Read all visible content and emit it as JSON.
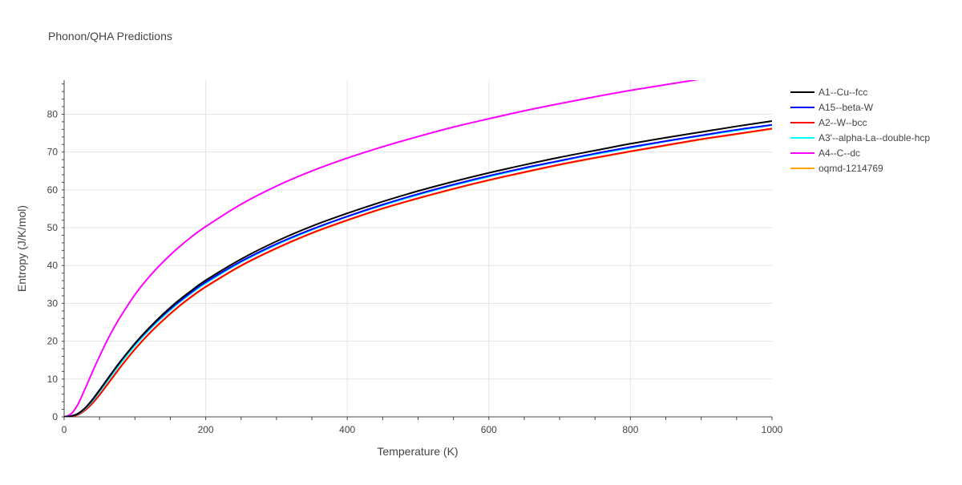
{
  "chart_data": {
    "type": "line",
    "title": "Phonon/QHA Predictions",
    "xlabel": "Temperature (K)",
    "ylabel": "Entropy (J/K/mol)",
    "xlim": [
      0,
      1000
    ],
    "ylim": [
      0,
      89
    ],
    "x_ticks": [
      0,
      200,
      400,
      600,
      800,
      1000
    ],
    "y_ticks": [
      0,
      10,
      20,
      30,
      40,
      50,
      60,
      70,
      80
    ],
    "grid": true,
    "legend_position": "right",
    "x": [
      0,
      10,
      20,
      30,
      40,
      50,
      60,
      70,
      80,
      100,
      120,
      140,
      160,
      180,
      200,
      250,
      300,
      350,
      400,
      450,
      500,
      550,
      600,
      650,
      700,
      750,
      800,
      850,
      900,
      950,
      1000
    ],
    "series": [
      {
        "name": "A1--Cu--fcc",
        "color": "#000000",
        "values": [
          0,
          0.2,
          0.9,
          2.4,
          4.5,
          7.0,
          9.6,
          12.2,
          14.7,
          19.4,
          23.5,
          27.2,
          30.5,
          33.4,
          36.1,
          41.7,
          46.4,
          50.4,
          53.8,
          56.9,
          59.7,
          62.2,
          64.5,
          66.6,
          68.6,
          70.4,
          72.2,
          73.8,
          75.3,
          76.8,
          78.2
        ]
      },
      {
        "name": "A15--beta-W",
        "color": "#0000ff",
        "values": [
          0,
          0.2,
          0.9,
          2.4,
          4.6,
          7.1,
          9.7,
          12.3,
          14.8,
          19.3,
          23.3,
          26.9,
          30.1,
          33.0,
          35.6,
          41.1,
          45.7,
          49.6,
          53.0,
          56.1,
          58.9,
          61.4,
          63.7,
          65.8,
          67.7,
          69.6,
          71.3,
          72.9,
          74.4,
          75.9,
          77.2
        ]
      },
      {
        "name": "A2--W--bcc",
        "color": "#ff0000",
        "values": [
          0,
          0.1,
          0.6,
          1.8,
          3.6,
          5.8,
          8.3,
          10.8,
          13.3,
          17.9,
          22.0,
          25.6,
          28.9,
          31.8,
          34.4,
          40.0,
          44.6,
          48.6,
          52.0,
          55.1,
          57.8,
          60.3,
          62.6,
          64.7,
          66.7,
          68.5,
          70.2,
          71.8,
          73.4,
          74.8,
          76.2
        ]
      },
      {
        "name": "A3'--alpha-La--double-hcp",
        "color": "#00ffff",
        "values": [
          0,
          0.2,
          0.8,
          2.2,
          4.2,
          6.6,
          9.1,
          11.7,
          14.2,
          18.8,
          22.9,
          26.5,
          29.8,
          32.7,
          35.3,
          40.9,
          45.5,
          49.4,
          52.9,
          55.9,
          58.7,
          61.2,
          63.5,
          65.6,
          67.6,
          69.4,
          71.1,
          72.8,
          74.3,
          75.7,
          77.1
        ]
      },
      {
        "name": "A4--C--dc",
        "color": "#ff00ff",
        "values": [
          0,
          0.8,
          3.5,
          7.6,
          11.9,
          16.0,
          19.9,
          23.4,
          26.6,
          32.3,
          37.0,
          41.0,
          44.5,
          47.6,
          50.3,
          56.2,
          61.0,
          65.0,
          68.4,
          71.4,
          74.1,
          76.6,
          78.8,
          80.9,
          82.8,
          84.6,
          86.3,
          87.8,
          89.3,
          90.7,
          92.0
        ]
      },
      {
        "name": "oqmd-1214769",
        "color": "#ffa500",
        "values": [
          0,
          0.1,
          0.6,
          1.8,
          3.6,
          5.8,
          8.2,
          10.7,
          13.2,
          17.8,
          21.9,
          25.5,
          28.8,
          31.7,
          34.3,
          39.9,
          44.5,
          48.5,
          51.9,
          55.0,
          57.7,
          60.2,
          62.5,
          64.6,
          66.6,
          68.4,
          70.1,
          71.7,
          73.3,
          74.7,
          76.1
        ]
      }
    ]
  }
}
